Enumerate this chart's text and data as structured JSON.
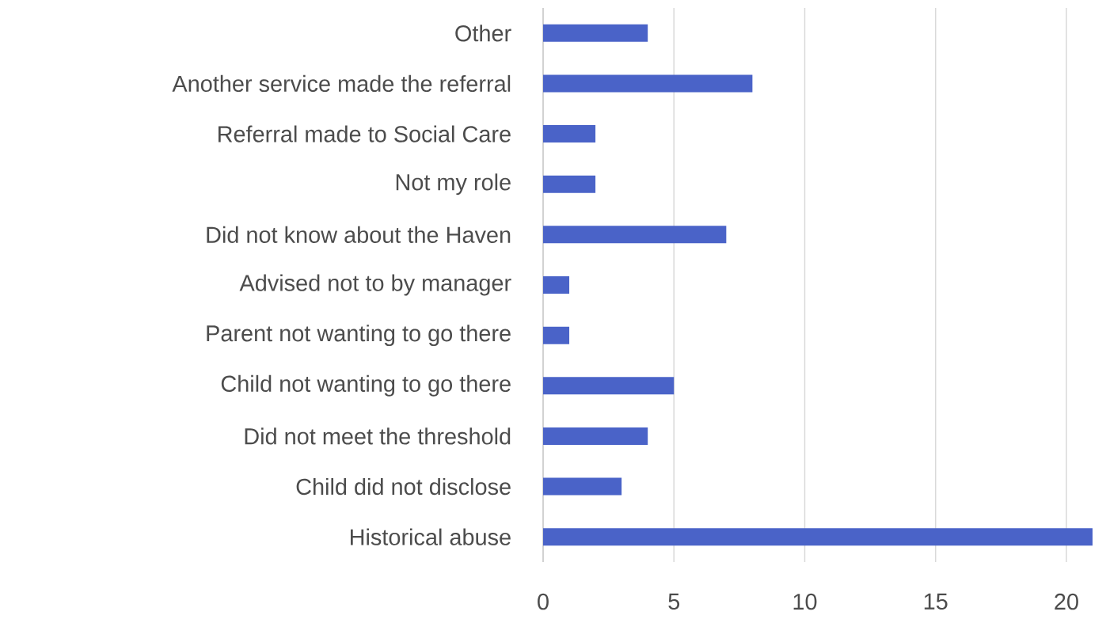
{
  "chart_data": {
    "type": "bar",
    "orientation": "horizontal",
    "categories": [
      "Other",
      "Another service made the referral",
      "Referral made to Social Care",
      "Not my role",
      "Did not know about the Haven",
      "Advised not to by manager",
      "Parent not wanting to go there",
      "Child not wanting to go there",
      "Did not meet the threshold",
      "Child did not disclose",
      "Historical abuse"
    ],
    "values": [
      4,
      8,
      2,
      2,
      7,
      1,
      1,
      5,
      4,
      3,
      21
    ],
    "color": "#4a63c8",
    "xlim": [
      0,
      21
    ],
    "xticks": [
      0,
      5,
      10,
      15,
      20
    ],
    "grid": "x"
  }
}
